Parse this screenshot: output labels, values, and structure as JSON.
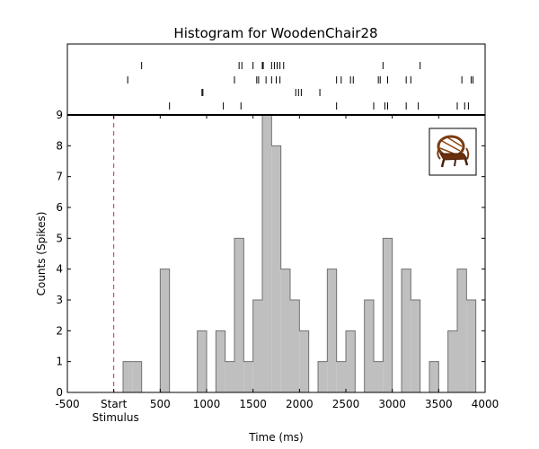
{
  "chart_data": {
    "type": "histogram",
    "title": "Histogram for WoodenChair28",
    "xlabel": "Time (ms)",
    "ylabel": "Counts (Spikes)",
    "xlim": [
      -500,
      4000
    ],
    "ylim": [
      0,
      9
    ],
    "xticks": [
      -500,
      0,
      500,
      1000,
      1500,
      2000,
      2500,
      3000,
      3500,
      4000
    ],
    "xtick_labels": [
      "-500",
      "Start",
      "500",
      "1000",
      "1500",
      "2000",
      "2500",
      "3000",
      "3500",
      "4000"
    ],
    "xtick_sublabels": {
      "0": "Stimulus"
    },
    "yticks": [
      0,
      1,
      2,
      3,
      4,
      5,
      6,
      7,
      8,
      9
    ],
    "grid": false,
    "stimulus_marker": {
      "x": 0,
      "style": "dashed",
      "color": "#e8232a"
    },
    "bin_width": 100,
    "bins": [
      {
        "start": -500,
        "count": 0
      },
      {
        "start": -400,
        "count": 0
      },
      {
        "start": -300,
        "count": 0
      },
      {
        "start": -200,
        "count": 0
      },
      {
        "start": -100,
        "count": 0
      },
      {
        "start": 100,
        "count": 1
      },
      {
        "start": 200,
        "count": 1
      },
      {
        "start": 300,
        "count": 0
      },
      {
        "start": 400,
        "count": 0
      },
      {
        "start": 500,
        "count": 4
      },
      {
        "start": 600,
        "count": 0
      },
      {
        "start": 700,
        "count": 0
      },
      {
        "start": 800,
        "count": 0
      },
      {
        "start": 900,
        "count": 2
      },
      {
        "start": 1000,
        "count": 0
      },
      {
        "start": 1100,
        "count": 2
      },
      {
        "start": 1200,
        "count": 1
      },
      {
        "start": 1300,
        "count": 5
      },
      {
        "start": 1400,
        "count": 1
      },
      {
        "start": 1500,
        "count": 3
      },
      {
        "start": 1600,
        "count": 9
      },
      {
        "start": 1700,
        "count": 8
      },
      {
        "start": 1800,
        "count": 4
      },
      {
        "start": 1900,
        "count": 3
      },
      {
        "start": 2000,
        "count": 2
      },
      {
        "start": 2100,
        "count": 0
      },
      {
        "start": 2200,
        "count": 1
      },
      {
        "start": 2300,
        "count": 4
      },
      {
        "start": 2400,
        "count": 1
      },
      {
        "start": 2500,
        "count": 2
      },
      {
        "start": 2600,
        "count": 0
      },
      {
        "start": 2700,
        "count": 3
      },
      {
        "start": 2800,
        "count": 1
      },
      {
        "start": 2900,
        "count": 5
      },
      {
        "start": 3000,
        "count": 0
      },
      {
        "start": 3100,
        "count": 4
      },
      {
        "start": 3200,
        "count": 3
      },
      {
        "start": 3300,
        "count": 0
      },
      {
        "start": 3400,
        "count": 1
      },
      {
        "start": 3500,
        "count": 0
      },
      {
        "start": 3600,
        "count": 2
      },
      {
        "start": 3700,
        "count": 4
      },
      {
        "start": 3800,
        "count": 3
      }
    ],
    "raster_trials": [
      [
        300,
        1350,
        1380,
        1500,
        1600,
        1610,
        1700,
        1730,
        1760,
        1790,
        1830,
        2900,
        3300
      ],
      [
        150,
        1300,
        1540,
        1560,
        1640,
        1700,
        1750,
        1790,
        2400,
        2450,
        2550,
        2580,
        2850,
        2870,
        2950,
        3150,
        3200,
        3750,
        3850,
        3870
      ],
      [
        950,
        960,
        1960,
        1990,
        2020,
        2220
      ],
      [
        600,
        1180,
        1370,
        2400,
        2800,
        2920,
        2950,
        3150,
        3280,
        3700,
        3780,
        3820
      ]
    ],
    "inset_image": "wooden-chair-icon"
  }
}
